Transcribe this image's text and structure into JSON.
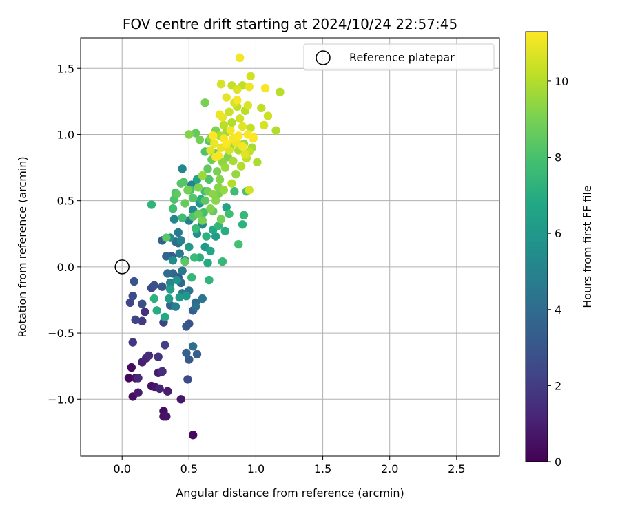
{
  "chart_data": {
    "type": "scatter",
    "title": "FOV centre drift starting at 2024/10/24 22:57:45",
    "xlabel": "Angular distance from reference (arcmin)",
    "ylabel": "Rotation from reference (arcmin)",
    "xlim": [
      -0.31,
      2.82
    ],
    "ylim": [
      -1.43,
      1.73
    ],
    "xticks": [
      {
        "v": 0.0,
        "label": "0.0"
      },
      {
        "v": 0.5,
        "label": "0.5"
      },
      {
        "v": 1.0,
        "label": "1.0"
      },
      {
        "v": 1.5,
        "label": "1.5"
      },
      {
        "v": 2.0,
        "label": "2.0"
      },
      {
        "v": 2.5,
        "label": "2.5"
      }
    ],
    "yticks": [
      {
        "v": -1.0,
        "label": "−1.0"
      },
      {
        "v": -0.5,
        "label": "−0.5"
      },
      {
        "v": 0.0,
        "label": "0.0"
      },
      {
        "v": 0.5,
        "label": "0.5"
      },
      {
        "v": 1.0,
        "label": "1.0"
      },
      {
        "v": 1.5,
        "label": "1.5"
      }
    ],
    "grid": true,
    "legend": {
      "position": "top-right",
      "entries": [
        "Reference platepar"
      ]
    },
    "reference_point": {
      "label": "Reference platepar",
      "x": 0.0,
      "y": 0.0
    },
    "colorbar": {
      "label": "Hours from first FF file",
      "range": [
        0,
        11.3
      ],
      "ticks": [
        {
          "v": 0,
          "label": "0"
        },
        {
          "v": 2,
          "label": "2"
        },
        {
          "v": 4,
          "label": "4"
        },
        {
          "v": 6,
          "label": "6"
        },
        {
          "v": 8,
          "label": "8"
        },
        {
          "v": 10,
          "label": "10"
        }
      ],
      "colormap": "viridis"
    },
    "points": [
      {
        "x": 0.05,
        "y": -0.84,
        "h": 0.2
      },
      {
        "x": 0.07,
        "y": -0.76,
        "h": 0.3
      },
      {
        "x": 0.08,
        "y": -0.98,
        "h": 0.4
      },
      {
        "x": 0.1,
        "y": -0.84,
        "h": 0.6
      },
      {
        "x": 0.12,
        "y": -0.95,
        "h": 0.8
      },
      {
        "x": 0.15,
        "y": -0.72,
        "h": 1.0
      },
      {
        "x": 0.18,
        "y": -0.69,
        "h": 1.2
      },
      {
        "x": 0.2,
        "y": -0.67,
        "h": 1.4
      },
      {
        "x": 0.22,
        "y": -0.9,
        "h": 0.5
      },
      {
        "x": 0.25,
        "y": -0.91,
        "h": 0.7
      },
      {
        "x": 0.27,
        "y": -0.8,
        "h": 0.9
      },
      {
        "x": 0.28,
        "y": -0.92,
        "h": 1.1
      },
      {
        "x": 0.3,
        "y": -0.79,
        "h": 0.6
      },
      {
        "x": 0.31,
        "y": -1.09,
        "h": 0.4
      },
      {
        "x": 0.31,
        "y": -1.13,
        "h": 0.5
      },
      {
        "x": 0.33,
        "y": -1.13,
        "h": 0.6
      },
      {
        "x": 0.34,
        "y": -0.94,
        "h": 0.9
      },
      {
        "x": 0.44,
        "y": -1.0,
        "h": 0.7
      },
      {
        "x": 0.53,
        "y": -1.27,
        "h": 0.3
      },
      {
        "x": 0.12,
        "y": -0.84,
        "h": 1.3
      },
      {
        "x": 0.08,
        "y": -0.57,
        "h": 1.8
      },
      {
        "x": 0.17,
        "y": -0.34,
        "h": 1.6
      },
      {
        "x": 0.15,
        "y": -0.41,
        "h": 1.9
      },
      {
        "x": 0.27,
        "y": -0.68,
        "h": 1.7
      },
      {
        "x": 0.32,
        "y": -0.59,
        "h": 2.1
      },
      {
        "x": 0.3,
        "y": -0.79,
        "h": 1.5
      },
      {
        "x": 0.06,
        "y": -0.27,
        "h": 2.4
      },
      {
        "x": 0.08,
        "y": -0.22,
        "h": 2.6
      },
      {
        "x": 0.1,
        "y": -0.4,
        "h": 2.3
      },
      {
        "x": 0.09,
        "y": -0.11,
        "h": 2.9
      },
      {
        "x": 0.15,
        "y": -0.28,
        "h": 2.7
      },
      {
        "x": 0.22,
        "y": -0.16,
        "h": 2.5
      },
      {
        "x": 0.24,
        "y": -0.14,
        "h": 2.8
      },
      {
        "x": 0.3,
        "y": -0.15,
        "h": 3.1
      },
      {
        "x": 0.31,
        "y": -0.42,
        "h": 2.2
      },
      {
        "x": 0.3,
        "y": 0.2,
        "h": 3.4
      },
      {
        "x": 0.33,
        "y": 0.08,
        "h": 3.6
      },
      {
        "x": 0.37,
        "y": 0.08,
        "h": 3.3
      },
      {
        "x": 0.38,
        "y": -0.05,
        "h": 3.7
      },
      {
        "x": 0.4,
        "y": 0.19,
        "h": 3.9
      },
      {
        "x": 0.42,
        "y": -0.08,
        "h": 3.2
      },
      {
        "x": 0.44,
        "y": -0.12,
        "h": 3.8
      },
      {
        "x": 0.48,
        "y": -0.45,
        "h": 3.0
      },
      {
        "x": 0.5,
        "y": -0.43,
        "h": 2.9
      },
      {
        "x": 0.48,
        "y": -0.65,
        "h": 3.5
      },
      {
        "x": 0.5,
        "y": -0.7,
        "h": 3.2
      },
      {
        "x": 0.53,
        "y": -0.6,
        "h": 4.0
      },
      {
        "x": 0.56,
        "y": -0.66,
        "h": 3.4
      },
      {
        "x": 0.49,
        "y": -0.85,
        "h": 2.6
      },
      {
        "x": 0.53,
        "y": -0.33,
        "h": 3.3
      },
      {
        "x": 0.55,
        "y": -0.3,
        "h": 4.2
      },
      {
        "x": 0.6,
        "y": -0.24,
        "h": 4.4
      },
      {
        "x": 0.55,
        "y": -0.27,
        "h": 3.9
      },
      {
        "x": 0.42,
        "y": 0.26,
        "h": 4.6
      },
      {
        "x": 0.45,
        "y": 0.74,
        "h": 5.2
      },
      {
        "x": 0.5,
        "y": 0.35,
        "h": 4.8
      },
      {
        "x": 0.52,
        "y": 0.62,
        "h": 5.0
      },
      {
        "x": 0.53,
        "y": 0.43,
        "h": 5.4
      },
      {
        "x": 0.56,
        "y": 0.25,
        "h": 5.6
      },
      {
        "x": 0.58,
        "y": 0.48,
        "h": 5.8
      },
      {
        "x": 0.6,
        "y": 0.32,
        "h": 5.3
      },
      {
        "x": 0.62,
        "y": 0.15,
        "h": 6.0
      },
      {
        "x": 0.45,
        "y": -0.03,
        "h": 4.5
      },
      {
        "x": 0.47,
        "y": 0.05,
        "h": 4.9
      },
      {
        "x": 0.43,
        "y": 0.1,
        "h": 4.7
      },
      {
        "x": 0.39,
        "y": 0.36,
        "h": 5.1
      },
      {
        "x": 0.36,
        "y": 0.22,
        "h": 5.5
      },
      {
        "x": 0.32,
        "y": -0.38,
        "h": 6.8
      },
      {
        "x": 0.35,
        "y": -0.24,
        "h": 6.3
      },
      {
        "x": 0.26,
        "y": -0.33,
        "h": 7.0
      },
      {
        "x": 0.24,
        "y": -0.24,
        "h": 7.2
      },
      {
        "x": 0.36,
        "y": -0.17,
        "h": 6.4
      },
      {
        "x": 0.43,
        "y": -0.23,
        "h": 6.1
      },
      {
        "x": 0.48,
        "y": -0.22,
        "h": 5.9
      },
      {
        "x": 0.52,
        "y": -0.08,
        "h": 7.4
      },
      {
        "x": 0.54,
        "y": 0.07,
        "h": 7.6
      },
      {
        "x": 0.58,
        "y": 0.07,
        "h": 7.1
      },
      {
        "x": 0.64,
        "y": 0.03,
        "h": 6.9
      },
      {
        "x": 0.65,
        "y": -0.1,
        "h": 7.3
      },
      {
        "x": 0.66,
        "y": 0.12,
        "h": 6.7
      },
      {
        "x": 0.7,
        "y": 0.23,
        "h": 6.2
      },
      {
        "x": 0.75,
        "y": 0.04,
        "h": 7.5
      },
      {
        "x": 0.77,
        "y": 0.27,
        "h": 7.0
      },
      {
        "x": 0.78,
        "y": 0.45,
        "h": 6.6
      },
      {
        "x": 0.8,
        "y": 0.4,
        "h": 7.8
      },
      {
        "x": 0.84,
        "y": 0.57,
        "h": 7.7
      },
      {
        "x": 0.87,
        "y": 0.17,
        "h": 7.9
      },
      {
        "x": 0.9,
        "y": 0.32,
        "h": 7.2
      },
      {
        "x": 0.91,
        "y": 0.39,
        "h": 7.5
      },
      {
        "x": 0.93,
        "y": 0.57,
        "h": 8.0
      },
      {
        "x": 0.22,
        "y": 0.47,
        "h": 7.3
      },
      {
        "x": 0.33,
        "y": 0.22,
        "h": 8.4
      },
      {
        "x": 0.38,
        "y": 0.44,
        "h": 7.8
      },
      {
        "x": 0.39,
        "y": 0.51,
        "h": 8.1
      },
      {
        "x": 0.41,
        "y": 0.55,
        "h": 8.5
      },
      {
        "x": 0.44,
        "y": 0.63,
        "h": 8.3
      },
      {
        "x": 0.47,
        "y": 0.48,
        "h": 8.6
      },
      {
        "x": 0.49,
        "y": 0.58,
        "h": 8.9
      },
      {
        "x": 0.51,
        "y": 0.58,
        "h": 8.0
      },
      {
        "x": 0.53,
        "y": 0.38,
        "h": 8.2
      },
      {
        "x": 0.55,
        "y": 0.29,
        "h": 7.6
      },
      {
        "x": 0.57,
        "y": 0.4,
        "h": 8.7
      },
      {
        "x": 0.6,
        "y": 0.35,
        "h": 9.0
      },
      {
        "x": 0.62,
        "y": 0.5,
        "h": 8.4
      },
      {
        "x": 0.64,
        "y": 0.57,
        "h": 8.8
      },
      {
        "x": 0.66,
        "y": 0.44,
        "h": 9.1
      },
      {
        "x": 0.68,
        "y": 0.42,
        "h": 8.6
      },
      {
        "x": 0.7,
        "y": 0.5,
        "h": 9.3
      },
      {
        "x": 0.72,
        "y": 0.6,
        "h": 9.2
      },
      {
        "x": 0.74,
        "y": 0.36,
        "h": 8.9
      },
      {
        "x": 0.76,
        "y": 0.58,
        "h": 9.5
      },
      {
        "x": 0.62,
        "y": 0.87,
        "h": 8.1
      },
      {
        "x": 0.65,
        "y": 0.95,
        "h": 8.3
      },
      {
        "x": 0.64,
        "y": 0.74,
        "h": 8.5
      },
      {
        "x": 0.67,
        "y": 0.81,
        "h": 8.7
      },
      {
        "x": 0.69,
        "y": 0.86,
        "h": 8.8
      },
      {
        "x": 0.71,
        "y": 0.72,
        "h": 9.0
      },
      {
        "x": 0.73,
        "y": 0.66,
        "h": 9.2
      },
      {
        "x": 0.75,
        "y": 0.79,
        "h": 9.4
      },
      {
        "x": 0.77,
        "y": 0.75,
        "h": 9.6
      },
      {
        "x": 0.79,
        "y": 0.83,
        "h": 9.1
      },
      {
        "x": 0.81,
        "y": 0.91,
        "h": 9.7
      },
      {
        "x": 0.83,
        "y": 0.8,
        "h": 9.8
      },
      {
        "x": 0.85,
        "y": 0.7,
        "h": 9.5
      },
      {
        "x": 0.87,
        "y": 0.88,
        "h": 9.9
      },
      {
        "x": 0.89,
        "y": 0.76,
        "h": 10.0
      },
      {
        "x": 0.91,
        "y": 0.93,
        "h": 9.6
      },
      {
        "x": 0.93,
        "y": 0.82,
        "h": 10.2
      },
      {
        "x": 0.95,
        "y": 0.87,
        "h": 10.3
      },
      {
        "x": 0.97,
        "y": 0.9,
        "h": 9.8
      },
      {
        "x": 0.55,
        "y": 1.01,
        "h": 8.6
      },
      {
        "x": 0.5,
        "y": 1.0,
        "h": 9.2
      },
      {
        "x": 0.58,
        "y": 0.96,
        "h": 8.9
      },
      {
        "x": 0.62,
        "y": 1.24,
        "h": 9.0
      },
      {
        "x": 0.66,
        "y": 0.97,
        "h": 9.4
      },
      {
        "x": 0.7,
        "y": 1.03,
        "h": 9.1
      },
      {
        "x": 0.73,
        "y": 0.99,
        "h": 9.9
      },
      {
        "x": 0.76,
        "y": 1.07,
        "h": 10.1
      },
      {
        "x": 0.78,
        "y": 1.02,
        "h": 9.7
      },
      {
        "x": 0.8,
        "y": 1.17,
        "h": 10.4
      },
      {
        "x": 0.82,
        "y": 1.09,
        "h": 10.0
      },
      {
        "x": 0.84,
        "y": 1.24,
        "h": 10.6
      },
      {
        "x": 0.86,
        "y": 1.21,
        "h": 10.2
      },
      {
        "x": 0.88,
        "y": 1.12,
        "h": 10.5
      },
      {
        "x": 0.9,
        "y": 1.06,
        "h": 10.8
      },
      {
        "x": 0.92,
        "y": 1.18,
        "h": 10.1
      },
      {
        "x": 0.94,
        "y": 1.22,
        "h": 10.7
      },
      {
        "x": 0.96,
        "y": 1.05,
        "h": 10.3
      },
      {
        "x": 0.98,
        "y": 0.97,
        "h": 10.9
      },
      {
        "x": 1.01,
        "y": 0.79,
        "h": 9.9
      },
      {
        "x": 1.04,
        "y": 1.2,
        "h": 10.2
      },
      {
        "x": 1.06,
        "y": 1.07,
        "h": 10.6
      },
      {
        "x": 1.09,
        "y": 1.14,
        "h": 10.4
      },
      {
        "x": 1.15,
        "y": 1.03,
        "h": 10.0
      },
      {
        "x": 1.18,
        "y": 1.32,
        "h": 10.1
      },
      {
        "x": 0.74,
        "y": 1.38,
        "h": 10.6
      },
      {
        "x": 0.78,
        "y": 1.28,
        "h": 10.9
      },
      {
        "x": 0.82,
        "y": 1.37,
        "h": 10.3
      },
      {
        "x": 0.86,
        "y": 1.34,
        "h": 10.7
      },
      {
        "x": 0.9,
        "y": 1.37,
        "h": 10.2
      },
      {
        "x": 0.95,
        "y": 1.36,
        "h": 11.0
      },
      {
        "x": 0.96,
        "y": 1.44,
        "h": 10.5
      },
      {
        "x": 1.07,
        "y": 1.35,
        "h": 11.2
      },
      {
        "x": 0.88,
        "y": 1.58,
        "h": 11.1
      },
      {
        "x": 0.66,
        "y": 0.88,
        "h": 10.8
      },
      {
        "x": 0.69,
        "y": 0.93,
        "h": 11.0
      },
      {
        "x": 0.72,
        "y": 0.84,
        "h": 11.2
      },
      {
        "x": 0.74,
        "y": 0.9,
        "h": 10.9
      },
      {
        "x": 0.76,
        "y": 0.97,
        "h": 11.1
      },
      {
        "x": 0.78,
        "y": 0.93,
        "h": 11.3
      },
      {
        "x": 0.8,
        "y": 0.88,
        "h": 10.7
      },
      {
        "x": 0.83,
        "y": 0.97,
        "h": 11.2
      },
      {
        "x": 0.85,
        "y": 0.94,
        "h": 11.0
      },
      {
        "x": 0.87,
        "y": 0.99,
        "h": 11.3
      },
      {
        "x": 0.9,
        "y": 0.91,
        "h": 11.1
      },
      {
        "x": 0.92,
        "y": 0.85,
        "h": 10.8
      },
      {
        "x": 0.94,
        "y": 1.0,
        "h": 11.2
      },
      {
        "x": 0.98,
        "y": 0.98,
        "h": 11.3
      },
      {
        "x": 0.73,
        "y": 1.15,
        "h": 11.0
      },
      {
        "x": 0.75,
        "y": 1.13,
        "h": 10.9
      },
      {
        "x": 0.86,
        "y": 1.26,
        "h": 11.2
      },
      {
        "x": 0.81,
        "y": 1.03,
        "h": 11.1
      },
      {
        "x": 0.68,
        "y": 0.99,
        "h": 11.3
      },
      {
        "x": 0.7,
        "y": 0.83,
        "h": 11.2
      },
      {
        "x": 0.95,
        "y": 0.58,
        "h": 10.5
      },
      {
        "x": 0.82,
        "y": 0.63,
        "h": 10.0
      },
      {
        "x": 0.68,
        "y": 0.55,
        "h": 9.3
      },
      {
        "x": 0.72,
        "y": 0.55,
        "h": 9.0
      },
      {
        "x": 0.6,
        "y": 0.69,
        "h": 9.6
      },
      {
        "x": 0.57,
        "y": 0.6,
        "h": 9.1
      },
      {
        "x": 0.53,
        "y": 0.52,
        "h": 8.3
      },
      {
        "x": 0.46,
        "y": 0.64,
        "h": 8.2
      },
      {
        "x": 0.4,
        "y": 0.56,
        "h": 8.0
      },
      {
        "x": 0.47,
        "y": 0.04,
        "h": 8.4
      },
      {
        "x": 0.45,
        "y": 0.37,
        "h": 7.7
      },
      {
        "x": 0.61,
        "y": 0.41,
        "h": 7.9
      },
      {
        "x": 0.63,
        "y": 0.23,
        "h": 7.2
      },
      {
        "x": 0.68,
        "y": 0.28,
        "h": 6.8
      },
      {
        "x": 0.72,
        "y": 0.31,
        "h": 7.4
      },
      {
        "x": 0.59,
        "y": 0.51,
        "h": 7.0
      },
      {
        "x": 0.62,
        "y": 0.57,
        "h": 7.5
      },
      {
        "x": 0.65,
        "y": 0.66,
        "h": 8.1
      },
      {
        "x": 0.56,
        "y": 0.66,
        "h": 6.5
      },
      {
        "x": 0.5,
        "y": 0.15,
        "h": 6.0
      },
      {
        "x": 0.41,
        "y": -0.1,
        "h": 5.8
      },
      {
        "x": 0.38,
        "y": 0.05,
        "h": 5.5
      },
      {
        "x": 0.36,
        "y": -0.12,
        "h": 5.2
      },
      {
        "x": 0.4,
        "y": -0.3,
        "h": 4.9
      },
      {
        "x": 0.45,
        "y": -0.2,
        "h": 4.6
      },
      {
        "x": 0.5,
        "y": -0.18,
        "h": 4.3
      },
      {
        "x": 0.44,
        "y": 0.2,
        "h": 5.0
      },
      {
        "x": 0.42,
        "y": 0.18,
        "h": 4.1
      },
      {
        "x": 0.36,
        "y": -0.29,
        "h": 3.6
      },
      {
        "x": 0.34,
        "y": -0.05,
        "h": 4.0
      }
    ]
  }
}
